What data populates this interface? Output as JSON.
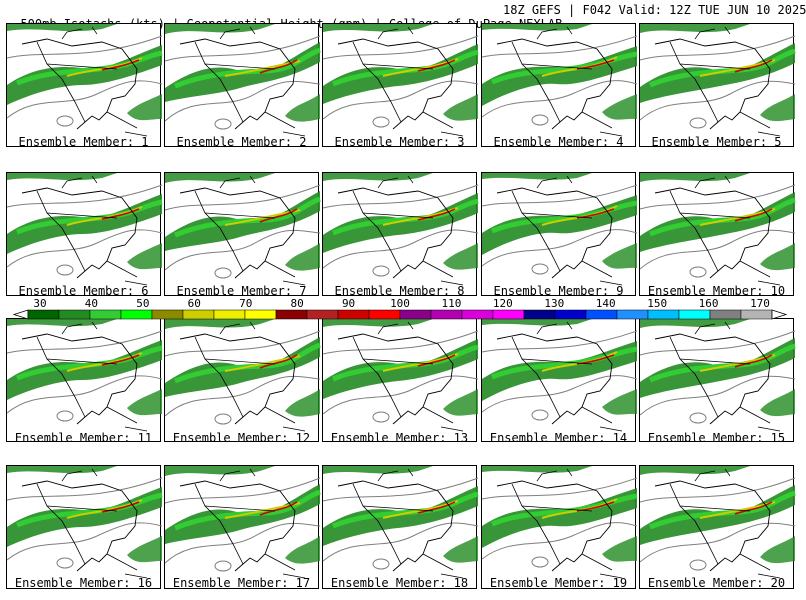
{
  "header": {
    "left": "500mb Isotachs (kts) | Geopotential Height (gpm) | College of DuPage NEXLAB",
    "right": "18Z GEFS | F042 Valid: 12Z TUE JUN 10 2025"
  },
  "members": [
    "Ensemble Member: 1",
    "Ensemble Member: 2",
    "Ensemble Member: 3",
    "Ensemble Member: 4",
    "Ensemble Member: 5",
    "Ensemble Member: 6",
    "Ensemble Member: 7",
    "Ensemble Member: 8",
    "Ensemble Member: 9",
    "Ensemble Member: 10",
    "Ensemble Member: 11",
    "Ensemble Member: 12",
    "Ensemble Member: 13",
    "Ensemble Member: 14",
    "Ensemble Member: 15",
    "Ensemble Member: 16",
    "Ensemble Member: 17",
    "Ensemble Member: 18",
    "Ensemble Member: 19",
    "Ensemble Member: 20"
  ],
  "colorbar": {
    "labels": [
      "30",
      "40",
      "50",
      "60",
      "70",
      "80",
      "90",
      "100",
      "110",
      "120",
      "130",
      "140",
      "150",
      "160",
      "170"
    ],
    "colors": [
      "#006400",
      "#228b22",
      "#32cd32",
      "#00ff00",
      "#8b8b00",
      "#cdcd00",
      "#eeee00",
      "#ffff00",
      "#8b0000",
      "#b22222",
      "#cd0000",
      "#ff0000",
      "#8b008b",
      "#b300b3",
      "#da00da",
      "#ff00ff",
      "#00008b",
      "#0000cd",
      "#0050ff",
      "#1e90ff",
      "#00bfff",
      "#00ffff",
      "#808080",
      "#b4b4b4"
    ]
  }
}
